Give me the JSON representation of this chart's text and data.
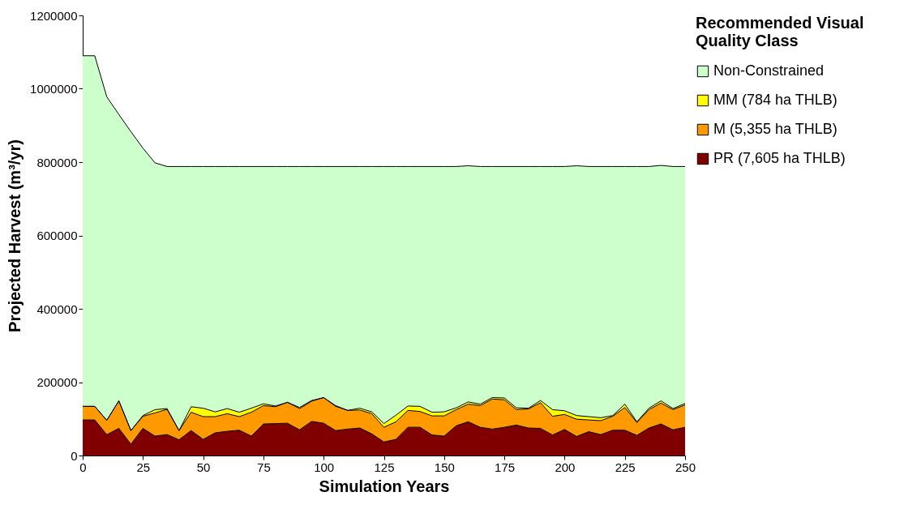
{
  "chart_data": {
    "type": "area",
    "stacked": true,
    "xlabel": "Simulation Years",
    "ylabel": "Projected Harvest (m³/yr)",
    "legend_title": "Recommended Visual Quality Class",
    "legend": "right",
    "grid": false,
    "x": [
      0,
      5,
      10,
      15,
      20,
      25,
      30,
      35,
      40,
      45,
      50,
      55,
      60,
      65,
      70,
      75,
      80,
      85,
      90,
      95,
      100,
      105,
      110,
      115,
      120,
      125,
      130,
      135,
      140,
      145,
      150,
      155,
      160,
      165,
      170,
      175,
      180,
      185,
      190,
      195,
      200,
      205,
      210,
      215,
      220,
      225,
      230,
      235,
      240,
      245,
      250
    ],
    "xlim": [
      0,
      250
    ],
    "xticks": [
      0,
      25,
      50,
      75,
      100,
      125,
      150,
      175,
      200,
      225,
      250
    ],
    "ylim": [
      0,
      1200000
    ],
    "yticks": [
      0,
      200000,
      400000,
      600000,
      800000,
      1000000,
      1200000
    ],
    "series": [
      {
        "name": "PR (7,605 ha THLB)",
        "color": "#800000",
        "values": [
          97000,
          97000,
          57000,
          74000,
          31000,
          74000,
          53000,
          57000,
          43000,
          68000,
          44000,
          62000,
          66000,
          69000,
          53000,
          86000,
          87000,
          88000,
          70000,
          93000,
          88000,
          68000,
          72000,
          75000,
          59000,
          37000,
          44000,
          77000,
          77000,
          56000,
          53000,
          81000,
          92000,
          77000,
          72000,
          77000,
          83000,
          75000,
          74000,
          56000,
          71000,
          52000,
          65000,
          57000,
          69000,
          69000,
          55000,
          75000,
          86000,
          70000,
          77000
        ]
      },
      {
        "name": "M (5,355 ha THLB)",
        "color": "#ff9900",
        "values": [
          37000,
          37000,
          39000,
          75000,
          37000,
          33000,
          63000,
          69000,
          25000,
          50000,
          62000,
          44000,
          48000,
          37000,
          65000,
          50000,
          46000,
          57000,
          58000,
          55000,
          70000,
          66000,
          51000,
          49000,
          55000,
          40000,
          48000,
          46000,
          43000,
          52000,
          55000,
          44000,
          48000,
          59000,
          82000,
          75000,
          42000,
          52000,
          70000,
          51000,
          41000,
          47000,
          32000,
          38000,
          38000,
          62000,
          35000,
          50000,
          57000,
          55000,
          61000
        ]
      },
      {
        "name": "MM (784 ha THLB)",
        "color": "#ffff00",
        "values": [
          0,
          0,
          0,
          0,
          0,
          2000,
          9000,
          2000,
          0,
          15000,
          23000,
          13000,
          14000,
          12000,
          11000,
          5000,
          2000,
          0,
          3000,
          2000,
          0,
          2000,
          0,
          5000,
          5000,
          10000,
          18000,
          12000,
          14000,
          10000,
          11000,
          5000,
          6000,
          4000,
          4000,
          5000,
          5000,
          2000,
          6000,
          18000,
          10000,
          10000,
          9000,
          8000,
          2000,
          9000,
          2000,
          4000,
          6000,
          3000,
          4000
        ]
      },
      {
        "name": "Non-Constrained",
        "color": "#ccffcc",
        "values": [
          956000,
          956000,
          882000,
          781000,
          815000,
          729000,
          673000,
          660000,
          720000,
          655000,
          659000,
          669000,
          660000,
          670000,
          659000,
          647000,
          653000,
          643000,
          657000,
          638000,
          630000,
          652000,
          665000,
          659000,
          669000,
          701000,
          678000,
          653000,
          654000,
          670000,
          669000,
          658000,
          644000,
          648000,
          630000,
          631000,
          658000,
          659000,
          638000,
          663000,
          666000,
          681000,
          682000,
          685000,
          679000,
          648000,
          696000,
          659000,
          642000,
          660000,
          646000
        ]
      }
    ]
  }
}
